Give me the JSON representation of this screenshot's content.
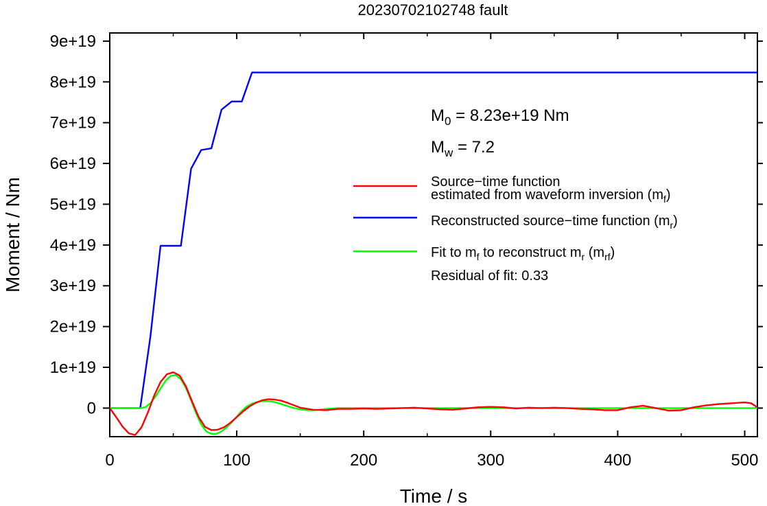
{
  "chart_data": {
    "type": "line",
    "title": "20230702102748 fault",
    "xlabel": "Time / s",
    "ylabel": "Moment / Nm",
    "xlim": [
      0,
      510
    ],
    "ylim": [
      -7e+18,
      9.2e+19
    ],
    "x_ticks": [
      0,
      100,
      200,
      300,
      400,
      500
    ],
    "x_tick_labels": [
      "0",
      "100",
      "200",
      "300",
      "400",
      "500"
    ],
    "y_ticks": [
      0,
      1e+19,
      2e+19,
      3e+19,
      4e+19,
      5e+19,
      6e+19,
      7e+19,
      8e+19,
      9e+19
    ],
    "y_tick_labels": [
      "0",
      "1e+19",
      "2e+19",
      "3e+19",
      "4e+19",
      "5e+19",
      "6e+19",
      "7e+19",
      "8e+19",
      "9e+19"
    ],
    "grid": false,
    "legend_position": "right",
    "annotations": {
      "m0": {
        "prefix": "M",
        "sub": "0",
        "text": " = 8.23e+19 Nm"
      },
      "mw": {
        "prefix": "M",
        "sub": "w",
        "text": " = 7.2"
      },
      "residual": "Residual of fit: 0.33"
    },
    "legend": [
      {
        "color": "#ff0000",
        "parts": [
          {
            "t": "Source−time function"
          },
          {
            "t": "estimated from waveform inversion (m",
            "newline": true
          },
          {
            "t": "f",
            "sub": true
          },
          {
            "t": ")"
          }
        ]
      },
      {
        "color": "#0000ff",
        "parts": [
          {
            "t": "Reconstructed source−time function (m"
          },
          {
            "t": "r",
            "sub": true
          },
          {
            "t": ")"
          }
        ]
      },
      {
        "color": "#00ff00",
        "parts": [
          {
            "t": "Fit to m"
          },
          {
            "t": "f",
            "sub": true
          },
          {
            "t": " to reconstruct m"
          },
          {
            "t": "r",
            "sub": true
          },
          {
            "t": " (m"
          },
          {
            "t": "rf",
            "sub": true
          },
          {
            "t": ")"
          }
        ]
      }
    ],
    "series": [
      {
        "color": "#0000ff",
        "x": [
          0,
          24,
          32,
          40,
          56,
          64,
          72,
          80,
          88,
          96,
          104,
          112,
          510
        ],
        "y": [
          0,
          0,
          1.75e+19,
          3.98e+19,
          3.98e+19,
          5.87e+19,
          6.33e+19,
          6.37e+19,
          7.32e+19,
          7.52e+19,
          7.52e+19,
          8.23e+19,
          8.23e+19
        ]
      },
      {
        "color": "#ff0000",
        "x": [
          0,
          5,
          10,
          15,
          20,
          25,
          30,
          35,
          40,
          45,
          50,
          55,
          60,
          65,
          70,
          75,
          80,
          85,
          90,
          95,
          100,
          105,
          110,
          115,
          120,
          125,
          130,
          135,
          140,
          145,
          150,
          160,
          170,
          180,
          190,
          200,
          210,
          220,
          230,
          240,
          250,
          260,
          270,
          280,
          290,
          300,
          310,
          320,
          330,
          340,
          350,
          360,
          370,
          380,
          390,
          400,
          410,
          420,
          430,
          440,
          450,
          460,
          470,
          480,
          490,
          500,
          505,
          510
        ],
        "y": [
          0,
          -2.2e+18,
          -4.5e+18,
          -6.2e+18,
          -6.6e+18,
          -4.7e+18,
          -1.1e+18,
          3.1e+18,
          6.4e+18,
          8.3e+18,
          8.8e+18,
          8e+18,
          5.3e+18,
          1.5e+18,
          -2.2e+18,
          -4.6e+18,
          -5.4e+18,
          -5.3e+18,
          -4.7e+18,
          -3.6e+18,
          -2.2e+18,
          -8e+17,
          4e+17,
          1.3e+18,
          1.9e+18,
          2.2e+18,
          2.1e+18,
          1.8e+18,
          1.3e+18,
          7e+17,
          1e+17,
          -4e+17,
          -5e+17,
          -2e+17,
          -2e+17,
          -1e+17,
          -2e+17,
          -1e+17,
          0,
          1e+17,
          -1e+17,
          -3e+17,
          -4e+17,
          -1e+17,
          2e+17,
          3e+17,
          2e+17,
          -1e+17,
          1e+17,
          0,
          1e+17,
          0,
          -2e+17,
          -3e+17,
          -5e+17,
          -5e+17,
          2e+17,
          6e+17,
          0,
          -6e+17,
          -5e+17,
          2e+17,
          7e+17,
          1e+18,
          1.2e+18,
          1.4e+18,
          1.2e+18,
          2e+17
        ]
      },
      {
        "color": "#00ff00",
        "x": [
          0,
          24,
          28,
          32,
          36,
          40,
          44,
          48,
          52,
          56,
          60,
          64,
          68,
          72,
          76,
          80,
          84,
          88,
          92,
          96,
          100,
          104,
          108,
          112,
          116,
          120,
          124,
          128,
          132,
          136,
          140,
          144,
          148,
          152,
          156,
          160,
          165,
          170,
          180,
          190,
          510
        ],
        "y": [
          0,
          0,
          2e+17,
          1.2e+18,
          2.8e+18,
          4.8e+18,
          6.7e+18,
          7.9e+18,
          8.1e+18,
          7.1e+18,
          4.9e+18,
          1.9e+18,
          -1.3e+18,
          -4e+18,
          -5.7e+18,
          -6.3e+18,
          -6.3e+18,
          -5.7e+18,
          -4.7e+18,
          -3.5e+18,
          -2.1e+18,
          -7e+17,
          4e+17,
          1.1e+18,
          1.5e+18,
          1.7e+18,
          1.7e+18,
          1.6e+18,
          1.3e+18,
          9e+17,
          5e+17,
          1e+17,
          -2e+17,
          -4e+17,
          -5e+17,
          -5e+17,
          -4e+17,
          -2e+17,
          0,
          0,
          0
        ]
      }
    ]
  }
}
